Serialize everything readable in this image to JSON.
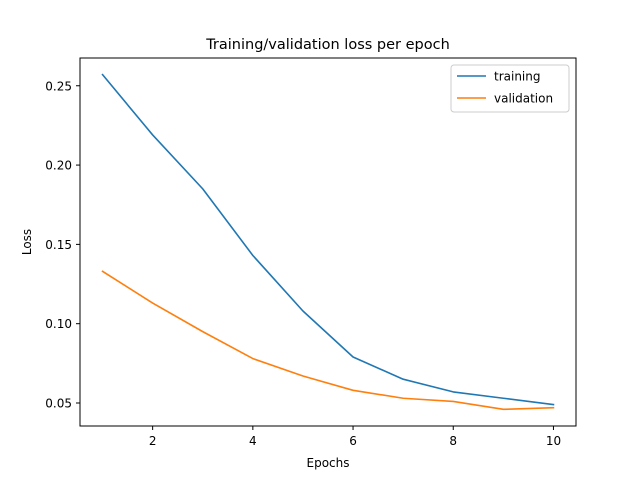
{
  "chart_data": {
    "type": "line",
    "title": "Training/validation loss per epoch",
    "xlabel": "Epochs",
    "ylabel": "Loss",
    "x": [
      1,
      2,
      3,
      4,
      5,
      6,
      7,
      8,
      9,
      10
    ],
    "xlim": [
      0.55,
      10.45
    ],
    "ylim": [
      0.0355,
      0.2675
    ],
    "xticks": [
      2,
      4,
      6,
      8,
      10
    ],
    "yticks": [
      0.05,
      0.1,
      0.15,
      0.2,
      0.25
    ],
    "ytick_labels": [
      "0.05",
      "0.10",
      "0.15",
      "0.20",
      "0.25"
    ],
    "grid": false,
    "legend_position": "top-right",
    "series": [
      {
        "name": "training",
        "color": "#1f77b4",
        "values": [
          0.257,
          0.219,
          0.185,
          0.143,
          0.108,
          0.079,
          0.065,
          0.057,
          0.053,
          0.049
        ]
      },
      {
        "name": "validation",
        "color": "#ff7f0e",
        "values": [
          0.133,
          0.113,
          0.095,
          0.078,
          0.067,
          0.058,
          0.053,
          0.051,
          0.046,
          0.047
        ]
      }
    ]
  }
}
